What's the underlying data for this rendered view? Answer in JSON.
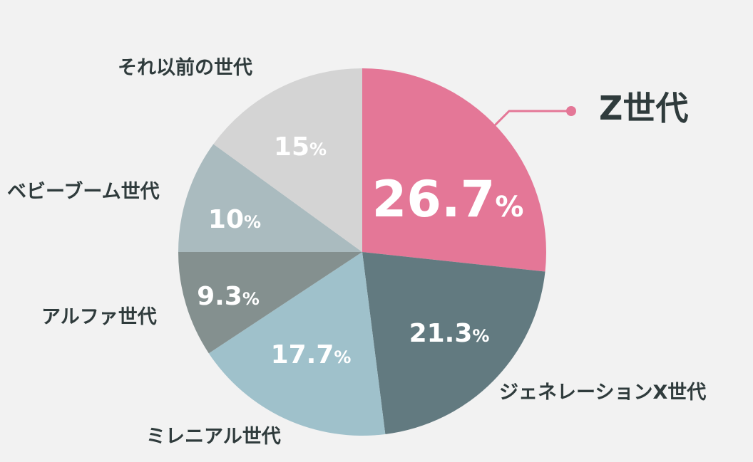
{
  "chart_data": {
    "type": "pie",
    "slices": [
      {
        "label": "Z世代",
        "value": 26.7,
        "display": "26.7",
        "unit": "%",
        "color": "#e47797",
        "highlight": true
      },
      {
        "label": "ジェネレーションX世代",
        "value": 21.3,
        "display": "21.3",
        "unit": "%",
        "color": "#627a80",
        "highlight": false
      },
      {
        "label": "ミレニアル世代",
        "value": 17.7,
        "display": "17.7",
        "unit": "%",
        "color": "#9fc1cb",
        "highlight": false
      },
      {
        "label": "アルファ世代",
        "value": 9.3,
        "display": "9.3",
        "unit": "%",
        "color": "#84908f",
        "highlight": false
      },
      {
        "label": "ベビーブーム世代",
        "value": 10,
        "display": "10",
        "unit": "%",
        "color": "#aabbbf",
        "highlight": false
      },
      {
        "label": "それ以前の世代",
        "value": 15,
        "display": "15",
        "unit": "%",
        "color": "#d4d4d4",
        "highlight": false
      }
    ],
    "start": "12 o'clock",
    "direction": "clockwise",
    "leader_line_color": "#e47797"
  }
}
